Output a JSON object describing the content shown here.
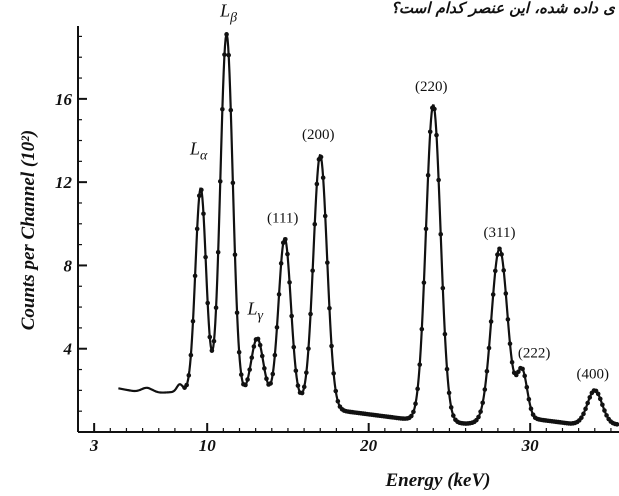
{
  "caption": "ی داده شده، این عنصر کدام است؟",
  "chart_data": {
    "type": "line",
    "xlabel": "Energy (keV)",
    "ylabel": "Counts per Channel (10²)",
    "xlim": [
      2,
      35.5
    ],
    "ylim": [
      0,
      19.5
    ],
    "x_ticks": [
      3,
      10,
      20,
      30
    ],
    "y_ticks": [
      4,
      8,
      12,
      16
    ],
    "grid": false,
    "series": [
      {
        "baseline": [
          [
            4.5,
            2.1
          ],
          [
            5.5,
            1.95
          ],
          [
            6.5,
            1.85
          ],
          [
            7.5,
            1.9
          ],
          [
            8.5,
            1.95
          ],
          [
            11.8,
            1.7
          ],
          [
            13.8,
            1.5
          ],
          [
            15.8,
            1.4
          ],
          [
            18.5,
            1.0
          ],
          [
            20.5,
            0.8
          ],
          [
            22.0,
            0.65
          ],
          [
            26.0,
            0.4
          ],
          [
            30.5,
            0.6
          ],
          [
            32.5,
            0.4
          ],
          [
            35.5,
            0.35
          ]
        ],
        "peaks": [
          {
            "label": "Lα",
            "x": 9.6,
            "y": 11.7
          },
          {
            "label": "Lβ",
            "x": 11.2,
            "y": 19.1
          },
          {
            "label": "Lγ",
            "x": 13.1,
            "y": 4.5
          },
          {
            "label": "(111)",
            "x": 14.8,
            "y": 9.3
          },
          {
            "label": "(200)",
            "x": 17.0,
            "y": 13.3
          },
          {
            "label": "(220)",
            "x": 24.0,
            "y": 15.7
          },
          {
            "label": "(311)",
            "x": 28.1,
            "y": 8.8
          },
          {
            "label": "(222)",
            "x": 29.5,
            "y": 2.9
          },
          {
            "label": "(400)",
            "x": 34.0,
            "y": 2.0
          }
        ]
      }
    ]
  }
}
